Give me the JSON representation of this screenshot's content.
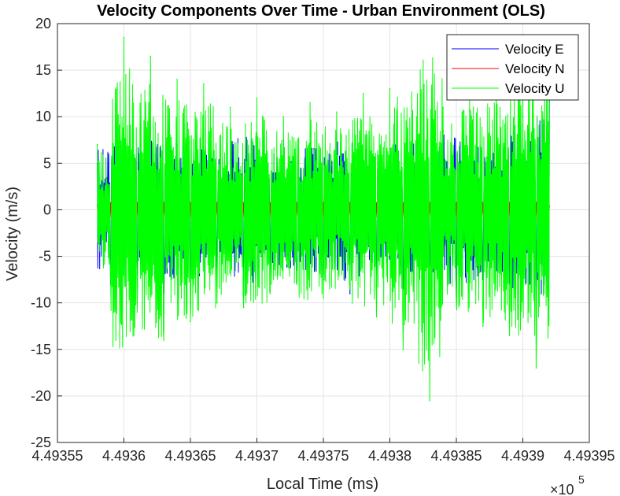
{
  "chart_data": {
    "type": "line",
    "title": "Velocity Components Over Time - Urban Environment (OLS)",
    "xlabel": "Local Time (ms)",
    "ylabel": "Velocity (m/s)",
    "x_exponent_label": "×10",
    "x_exponent_power": "5",
    "xlim": [
      449355,
      449395
    ],
    "ylim": [
      -25,
      20
    ],
    "xticks": [
      449355,
      449360,
      449365,
      449370,
      449375,
      449380,
      449385,
      449390,
      449395
    ],
    "xtick_labels": [
      "4.49355",
      "4.4936",
      "4.49365",
      "4.4937",
      "4.49375",
      "4.4938",
      "4.49385",
      "4.4939",
      "4.49395"
    ],
    "yticks": [
      20,
      15,
      10,
      5,
      0,
      -5,
      -10,
      -15,
      -20,
      -25
    ],
    "ytick_labels": [
      "20",
      "15",
      "10",
      "5",
      "0",
      "-5",
      "-10",
      "-15",
      "-20",
      "-25"
    ],
    "grid": true,
    "legend_position": "top-right",
    "x_range_of_data": [
      449358.0,
      449392.0
    ],
    "series": [
      {
        "name": "Velocity E",
        "color": "#0000ff",
        "x": [
          449358,
          449359,
          449360,
          449361,
          449362,
          449363,
          449364,
          449365,
          449366,
          449367,
          449368,
          449369,
          449370,
          449371,
          449372,
          449373,
          449374,
          449375,
          449376,
          449377,
          449378,
          449379,
          449380,
          449381,
          449382,
          449383,
          449384,
          449385,
          449386,
          449387,
          449388,
          449389,
          449390,
          449391,
          449392
        ],
        "values": [
          5.0,
          -8.0,
          6.0,
          -7.5,
          8.0,
          -9.0,
          7.0,
          -8.5,
          6.5,
          -7.0,
          5.5,
          -9.5,
          6.0,
          -8.0,
          7.5,
          -6.5,
          8.0,
          -7.5,
          6.0,
          -9.0,
          5.5,
          -7.0,
          6.5,
          -8.5,
          7.0,
          -6.0,
          8.5,
          -9.5,
          9.0,
          -7.5,
          6.0,
          -8.0,
          10.0,
          -10.5,
          12.0
        ]
      },
      {
        "name": "Velocity N",
        "color": "#ff0000",
        "x": [
          449358,
          449360,
          449362,
          449364,
          449366,
          449368,
          449370,
          449372,
          449374,
          449376,
          449378,
          449380,
          449382,
          449384,
          449386,
          449388,
          449390,
          449392
        ],
        "values": [
          0.5,
          -0.8,
          0.7,
          -0.6,
          -0.9,
          0.6,
          -0.5,
          0.8,
          -0.7,
          0.5,
          -0.6,
          0.7,
          -0.5,
          0.6,
          -0.8,
          0.5,
          -0.6,
          0.4
        ]
      },
      {
        "name": "Velocity U",
        "color": "#00ff00",
        "x": [
          449358,
          449359,
          449360,
          449361,
          449362,
          449363,
          449364,
          449365,
          449366,
          449367,
          449368,
          449369,
          449370,
          449371,
          449372,
          449373,
          449374,
          449375,
          449376,
          449377,
          449378,
          449379,
          449380,
          449381,
          449382,
          449383,
          449384,
          449385,
          449386,
          449387,
          449388,
          449389,
          449390,
          449391,
          449392
        ],
        "values": [
          7.0,
          -7.5,
          18.5,
          -11.0,
          16.5,
          -14.0,
          14.0,
          -12.0,
          13.5,
          -10.0,
          11.0,
          -10.5,
          12.0,
          -9.0,
          10.0,
          -8.0,
          11.5,
          -9.5,
          10.5,
          -8.5,
          12.5,
          -11.5,
          13.0,
          -15.0,
          10.0,
          -20.5,
          11.0,
          -10.0,
          13.5,
          -12.5,
          14.0,
          -13.5,
          16.5,
          -17.0,
          13.0
        ]
      }
    ]
  }
}
